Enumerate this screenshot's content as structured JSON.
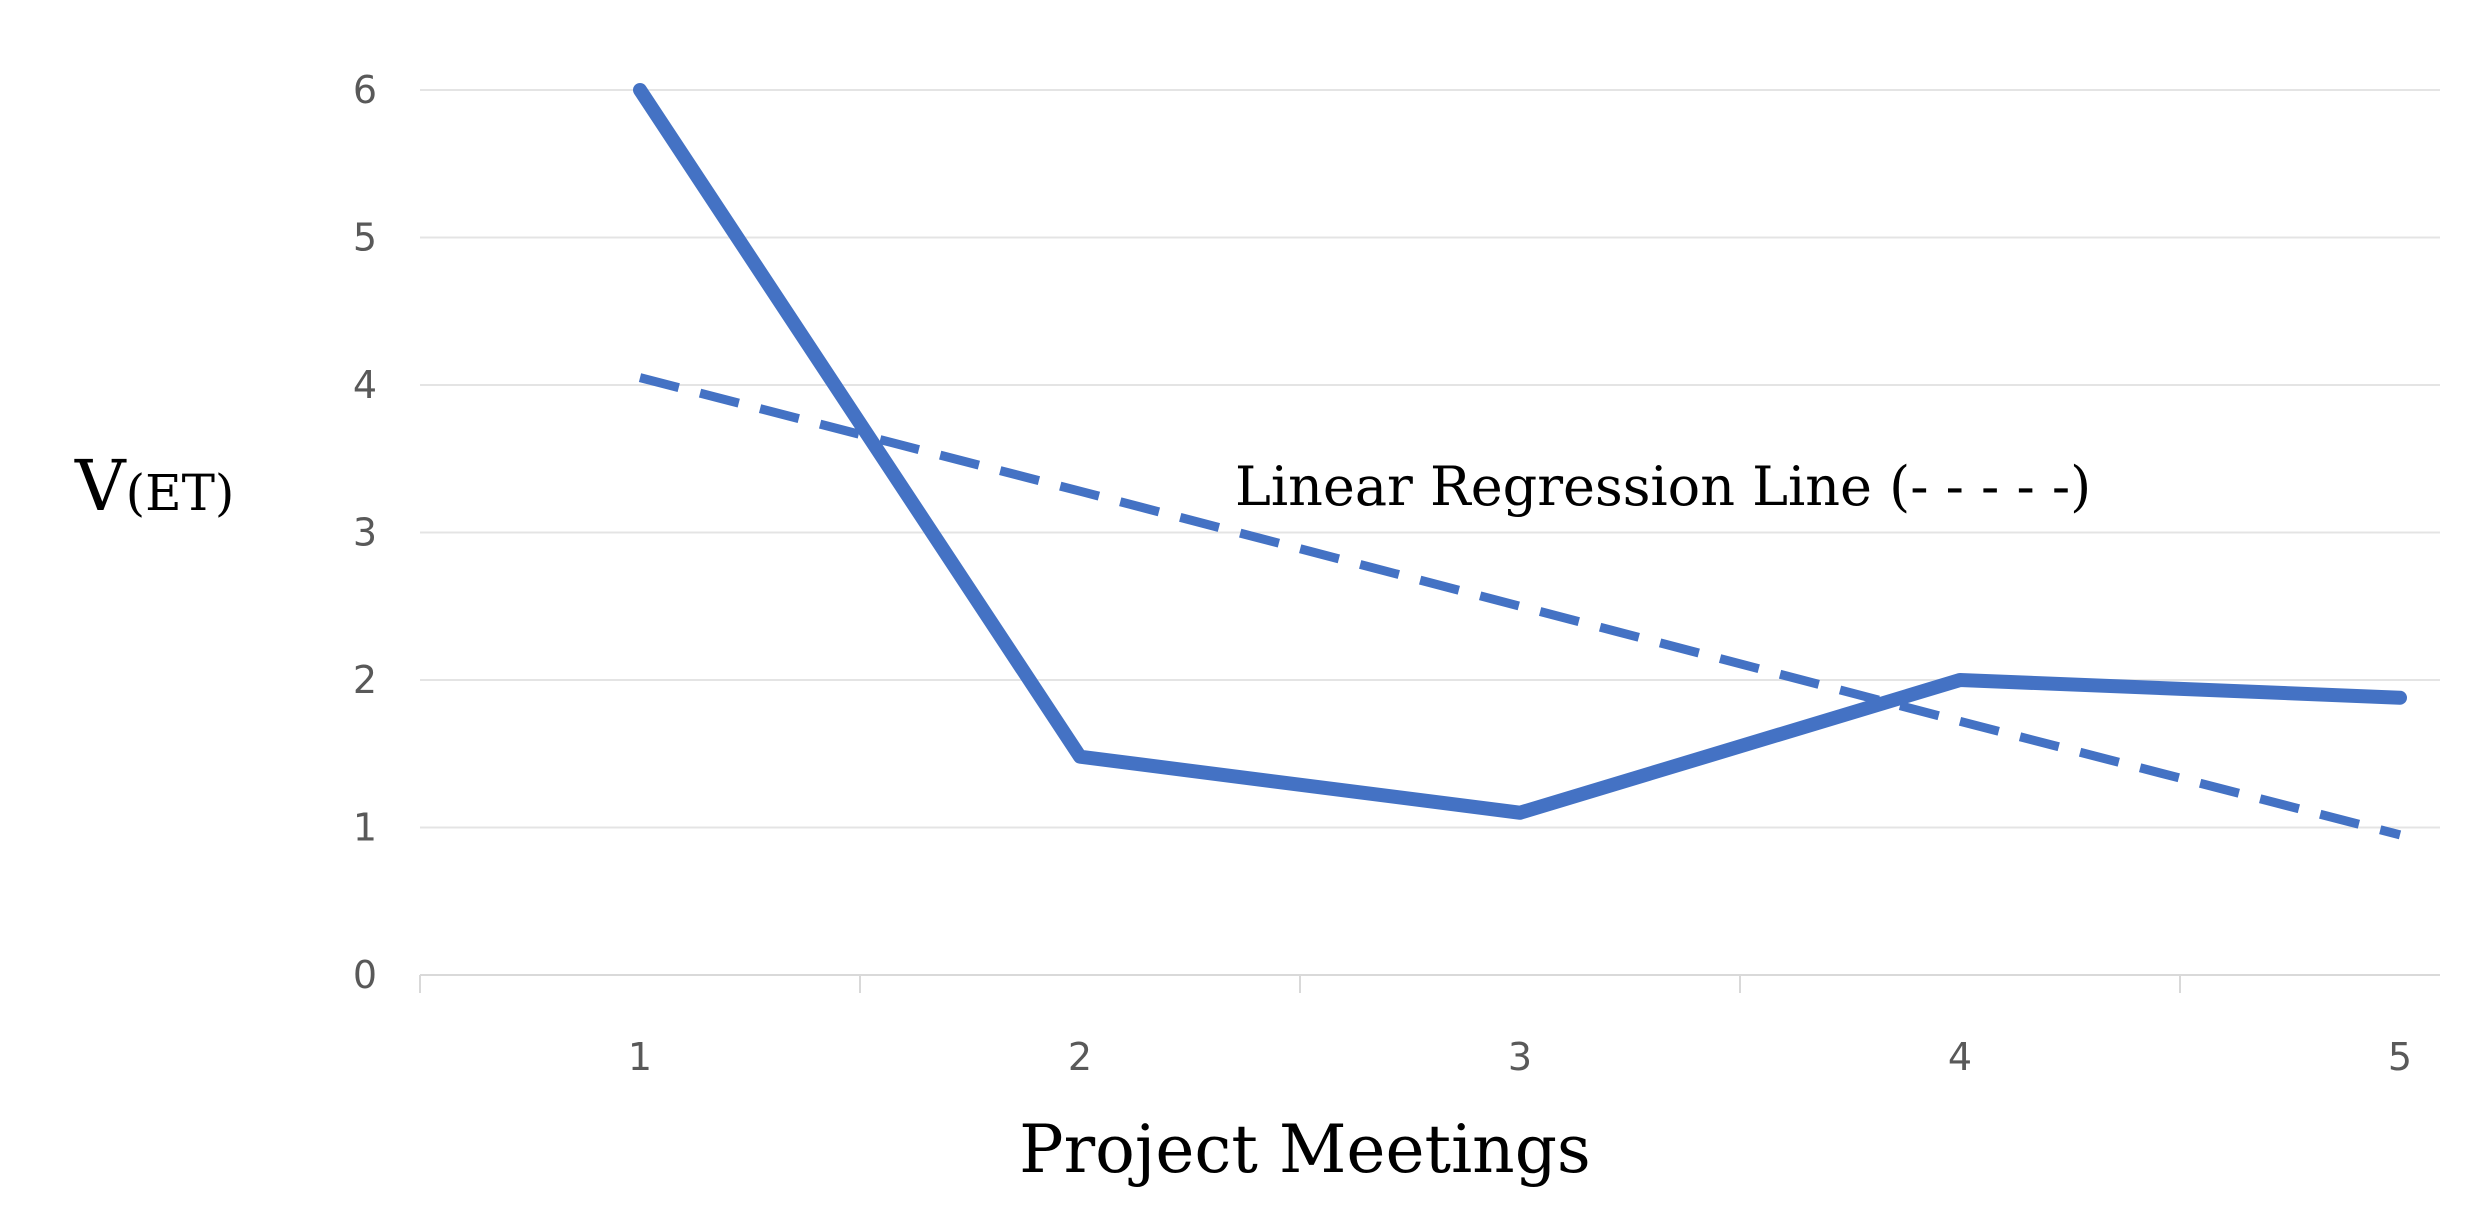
{
  "chart_data": {
    "type": "line",
    "xlabel": "Project Meetings",
    "ylabel": "V",
    "ylabel_subscript": "(ET)",
    "categories": [
      "1",
      "2",
      "3",
      "4",
      "5"
    ],
    "yticks": [
      "0",
      "1",
      "2",
      "3",
      "4",
      "5",
      "6"
    ],
    "ylim": [
      0,
      6
    ],
    "grid": true,
    "series": [
      {
        "values": [
          6.0,
          1.48,
          1.1,
          2.0,
          1.88
        ],
        "style": "solid",
        "color": "#4472c4"
      },
      {
        "values": [
          4.05,
          3.28,
          2.5,
          1.72,
          0.95
        ],
        "style": "dashed",
        "color": "#4472c4"
      }
    ],
    "annotations": [
      {
        "text": "Linear Regression Line (- - - - -)"
      }
    ]
  }
}
